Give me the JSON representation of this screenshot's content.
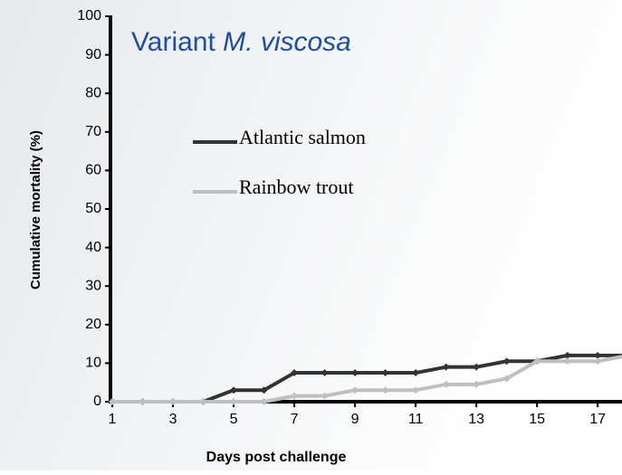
{
  "chart_data": {
    "type": "line",
    "title": [
      "Variant",
      "M. viscosa"
    ],
    "xlabel": "Days post challenge",
    "ylabel": "Cumulative mortality (%)",
    "x": [
      1,
      2,
      3,
      4,
      5,
      6,
      7,
      8,
      9,
      10,
      11,
      12,
      13,
      14,
      15,
      16,
      17,
      18
    ],
    "series": [
      {
        "name": "Atlantic salmon",
        "color": "#333333",
        "values": [
          0,
          0,
          0,
          0,
          3,
          3,
          7.5,
          7.5,
          7.5,
          7.5,
          7.5,
          9,
          9,
          10.5,
          10.5,
          12,
          12,
          12
        ]
      },
      {
        "name": "Rainbow trout",
        "color": "#bfbfbf",
        "values": [
          0,
          0,
          0,
          0,
          0,
          0,
          1.5,
          1.5,
          3,
          3,
          3,
          4.5,
          4.5,
          6,
          10.5,
          10.5,
          10.5,
          12
        ]
      }
    ],
    "xlim": [
      1,
      17.8
    ],
    "xticks": [
      1,
      3,
      5,
      7,
      9,
      11,
      13,
      15,
      17
    ],
    "ylim": [
      0,
      100
    ],
    "yticks": [
      0,
      10,
      20,
      30,
      40,
      50,
      60,
      70,
      80,
      90,
      100
    ]
  }
}
